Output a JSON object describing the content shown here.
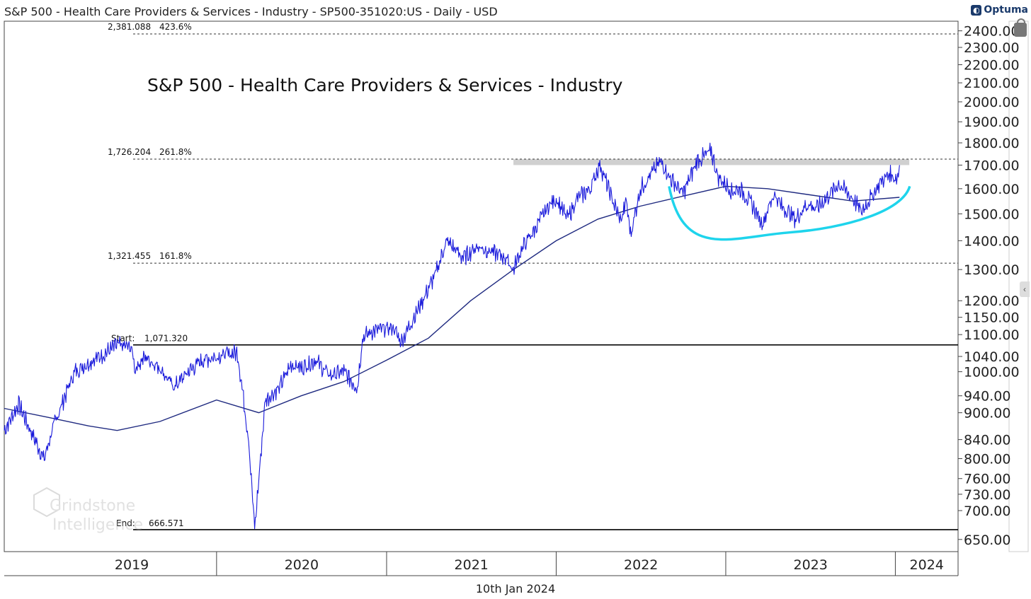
{
  "header": {
    "title": "S&P 500 - Health Care Providers & Services - Industry - SP500-351020:US - Daily - USD",
    "brand": "Optuma"
  },
  "footer": {
    "date": "10th Jan 2024"
  },
  "watermark": {
    "line1": "Grindstone",
    "line2": "Intelligence"
  },
  "colors": {
    "price": "#1a1adb",
    "moving_average": "#1f2a80",
    "arc": "#1ed4ec",
    "resistance_band": "#c8c8c8",
    "grid": "#000000"
  },
  "chart_data": {
    "type": "line",
    "title": "S&P 500 - Health Care Providers & Services - Industry",
    "scale": "log",
    "ylim": [
      630,
      2460
    ],
    "x_range": [
      "2018-10-01",
      "2024-05-15"
    ],
    "year_labels": [
      "2019",
      "2020",
      "2021",
      "2022",
      "2023",
      "2024"
    ],
    "y_ticks": [
      "650.00",
      "700.00",
      "730.00",
      "760.00",
      "800.00",
      "840.00",
      "900.00",
      "940.00",
      "1000.00",
      "1040.00",
      "1100.00",
      "1150.00",
      "1200.00",
      "1300.00",
      "1400.00",
      "1500.00",
      "1600.00",
      "1700.00",
      "1800.00",
      "1900.00",
      "2000.00",
      "2100.00",
      "2200.00",
      "2300.00",
      "2400.00"
    ],
    "levels": [
      {
        "value": 2381.088,
        "label": "2,381.088",
        "pct": "423.6%",
        "style": "dashed"
      },
      {
        "value": 1726.204,
        "label": "1,726.204",
        "pct": "261.8%",
        "style": "dashed"
      },
      {
        "value": 1321.455,
        "label": "1,321.455",
        "pct": "161.8%",
        "style": "dashed"
      },
      {
        "value": 1071.32,
        "label": "1,071.320",
        "tag": "Start:",
        "style": "solid"
      },
      {
        "value": 666.571,
        "label": "666.571",
        "tag": "End:",
        "style": "solid"
      }
    ],
    "resistance_zone": {
      "low": 1700,
      "high": 1726,
      "from": "2021-10-01",
      "to": "2024-01-31"
    },
    "rounding_bottom": {
      "from": "2022-09-01",
      "to": "2024-02-01",
      "low": 1430,
      "ends": 1610
    },
    "series": [
      {
        "name": "Price",
        "points": [
          [
            "2018-10-01",
            860
          ],
          [
            "2018-11-01",
            920
          ],
          [
            "2018-12-10",
            830
          ],
          [
            "2018-12-26",
            800
          ],
          [
            "2019-01-15",
            870
          ],
          [
            "2019-03-01",
            1000
          ],
          [
            "2019-04-10",
            1030
          ],
          [
            "2019-05-01",
            1045
          ],
          [
            "2019-06-01",
            1070
          ],
          [
            "2019-07-01",
            1065
          ],
          [
            "2019-07-10",
            1010
          ],
          [
            "2019-08-01",
            1040
          ],
          [
            "2019-09-01",
            1010
          ],
          [
            "2019-10-01",
            960
          ],
          [
            "2019-11-01",
            1000
          ],
          [
            "2019-12-01",
            1030
          ],
          [
            "2020-01-15",
            1045
          ],
          [
            "2020-02-15",
            1050
          ],
          [
            "2020-02-25",
            960
          ],
          [
            "2020-03-10",
            840
          ],
          [
            "2020-03-23",
            666.571
          ],
          [
            "2020-04-15",
            930
          ],
          [
            "2020-05-15",
            960
          ],
          [
            "2020-06-10",
            1020
          ],
          [
            "2020-07-01",
            1010
          ],
          [
            "2020-08-01",
            1030
          ],
          [
            "2020-09-01",
            990
          ],
          [
            "2020-10-01",
            1000
          ],
          [
            "2020-10-30",
            960
          ],
          [
            "2020-11-10",
            1090
          ],
          [
            "2020-12-01",
            1110
          ],
          [
            "2021-01-15",
            1120
          ],
          [
            "2021-02-01",
            1080
          ],
          [
            "2021-03-01",
            1150
          ],
          [
            "2021-04-15",
            1280
          ],
          [
            "2021-05-10",
            1400
          ],
          [
            "2021-06-15",
            1340
          ],
          [
            "2021-07-15",
            1380
          ],
          [
            "2021-08-15",
            1360
          ],
          [
            "2021-09-15",
            1340
          ],
          [
            "2021-10-01",
            1300
          ],
          [
            "2021-10-15",
            1360
          ],
          [
            "2021-11-15",
            1440
          ],
          [
            "2021-12-15",
            1530
          ],
          [
            "2022-01-01",
            1560
          ],
          [
            "2022-01-25",
            1480
          ],
          [
            "2022-02-15",
            1560
          ],
          [
            "2022-03-15",
            1600
          ],
          [
            "2022-04-05",
            1705
          ],
          [
            "2022-05-01",
            1560
          ],
          [
            "2022-05-20",
            1470
          ],
          [
            "2022-06-01",
            1550
          ],
          [
            "2022-06-10",
            1420
          ],
          [
            "2022-07-01",
            1600
          ],
          [
            "2022-08-15",
            1720
          ],
          [
            "2022-09-01",
            1650
          ],
          [
            "2022-10-01",
            1580
          ],
          [
            "2022-11-01",
            1720
          ],
          [
            "2022-12-01",
            1760
          ],
          [
            "2022-12-15",
            1650
          ],
          [
            "2023-01-15",
            1590
          ],
          [
            "2023-02-01",
            1600
          ],
          [
            "2023-03-01",
            1530
          ],
          [
            "2023-03-20",
            1460
          ],
          [
            "2023-04-15",
            1580
          ],
          [
            "2023-05-01",
            1530
          ],
          [
            "2023-06-01",
            1480
          ],
          [
            "2023-06-25",
            1540
          ],
          [
            "2023-07-15",
            1520
          ],
          [
            "2023-08-15",
            1580
          ],
          [
            "2023-09-01",
            1620
          ],
          [
            "2023-10-01",
            1560
          ],
          [
            "2023-10-20",
            1510
          ],
          [
            "2023-11-15",
            1580
          ],
          [
            "2023-12-01",
            1630
          ],
          [
            "2023-12-20",
            1660
          ],
          [
            "2024-01-05",
            1640
          ],
          [
            "2024-01-10",
            1700
          ]
        ]
      },
      {
        "name": "Moving Average",
        "points": [
          [
            "2018-10-01",
            910
          ],
          [
            "2019-01-01",
            890
          ],
          [
            "2019-04-01",
            870
          ],
          [
            "2019-06-01",
            860
          ],
          [
            "2019-09-01",
            880
          ],
          [
            "2020-01-01",
            930
          ],
          [
            "2020-04-01",
            900
          ],
          [
            "2020-07-01",
            940
          ],
          [
            "2020-10-01",
            975
          ],
          [
            "2021-01-01",
            1030
          ],
          [
            "2021-04-01",
            1090
          ],
          [
            "2021-07-01",
            1200
          ],
          [
            "2021-10-01",
            1300
          ],
          [
            "2022-01-01",
            1400
          ],
          [
            "2022-04-01",
            1480
          ],
          [
            "2022-07-01",
            1530
          ],
          [
            "2022-10-01",
            1570
          ],
          [
            "2023-01-01",
            1610
          ],
          [
            "2023-04-01",
            1600
          ],
          [
            "2023-07-01",
            1575
          ],
          [
            "2023-10-01",
            1550
          ],
          [
            "2024-01-10",
            1565
          ]
        ]
      }
    ]
  }
}
